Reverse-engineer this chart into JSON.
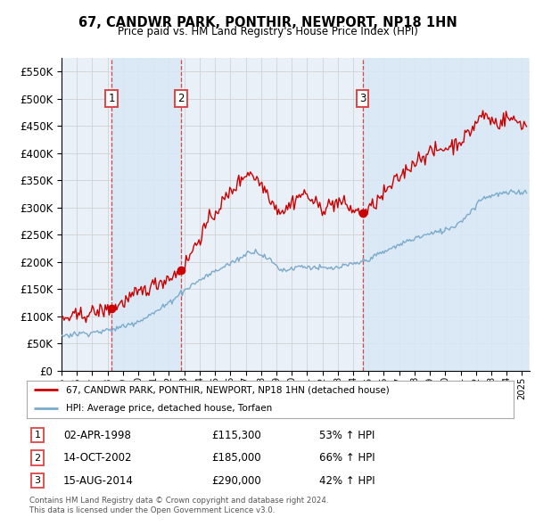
{
  "title": "67, CANDWR PARK, PONTHIR, NEWPORT, NP18 1HN",
  "subtitle": "Price paid vs. HM Land Registry's House Price Index (HPI)",
  "transactions": [
    {
      "num": 1,
      "date": "02-APR-1998",
      "price": 115300,
      "hpi_change": "53% ↑ HPI",
      "date_decimal": 1998.25
    },
    {
      "num": 2,
      "date": "14-OCT-2002",
      "price": 185000,
      "hpi_change": "66% ↑ HPI",
      "date_decimal": 2002.79
    },
    {
      "num": 3,
      "date": "15-AUG-2014",
      "price": 290000,
      "hpi_change": "42% ↑ HPI",
      "date_decimal": 2014.62
    }
  ],
  "red_line_color": "#cc0000",
  "blue_line_color": "#7aaacc",
  "dot_color": "#cc0000",
  "vline_color": "#dd4444",
  "vline_dash_color": "#dd4444",
  "shade_color": "#d8e8f5",
  "grid_color": "#cccccc",
  "background_color": "#ffffff",
  "plot_bg_color": "#eaf0f8",
  "legend_line1": "67, CANDWR PARK, PONTHIR, NEWPORT, NP18 1HN (detached house)",
  "legend_line2": "HPI: Average price, detached house, Torfaen",
  "footer1": "Contains HM Land Registry data © Crown copyright and database right 2024.",
  "footer2": "This data is licensed under the Open Government Licence v3.0.",
  "ylim": [
    0,
    575000
  ],
  "xlim_start": 1995.0,
  "xlim_end": 2025.5
}
